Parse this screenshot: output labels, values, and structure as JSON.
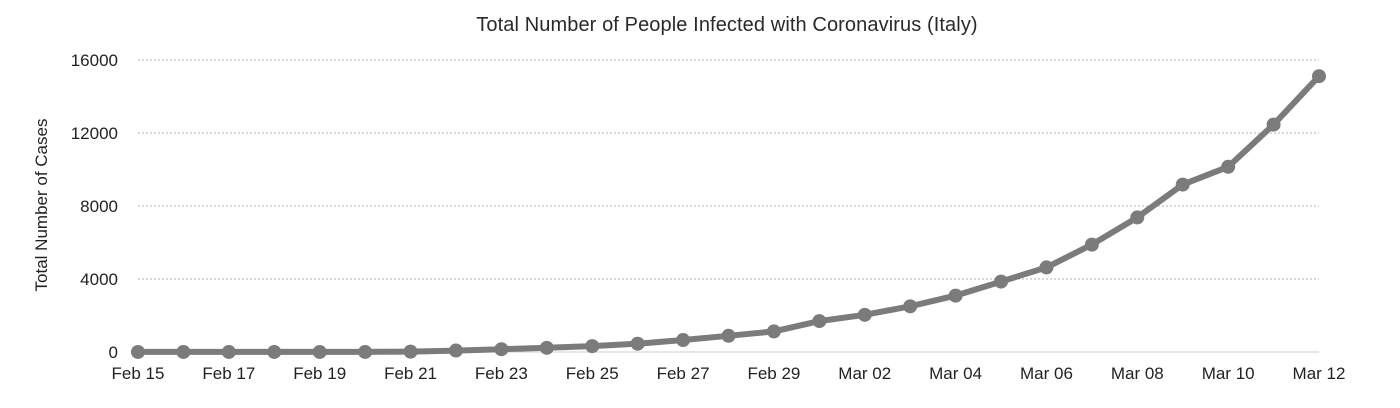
{
  "chart_data": {
    "type": "line",
    "title": "Total Number of People Infected with Coronavirus (Italy)",
    "xlabel": "",
    "ylabel": "Total Number of Cases",
    "ylim": [
      0,
      16000
    ],
    "yticks": [
      0,
      4000,
      8000,
      12000,
      16000
    ],
    "grid": true,
    "legend": "none",
    "x": [
      "Feb 15",
      "Feb 16",
      "Feb 17",
      "Feb 18",
      "Feb 19",
      "Feb 20",
      "Feb 21",
      "Feb 22",
      "Feb 23",
      "Feb 24",
      "Feb 25",
      "Feb 26",
      "Feb 27",
      "Feb 28",
      "Feb 29",
      "Mar 01",
      "Mar 02",
      "Mar 03",
      "Mar 04",
      "Mar 05",
      "Mar 06",
      "Mar 07",
      "Mar 08",
      "Mar 09",
      "Mar 10",
      "Mar 11",
      "Mar 12"
    ],
    "xtick_labels": [
      "Feb 15",
      "Feb 17",
      "Feb 19",
      "Feb 21",
      "Feb 23",
      "Feb 25",
      "Feb 27",
      "Feb 29",
      "Mar 02",
      "Mar 04",
      "Mar 06",
      "Mar 08",
      "Mar 10",
      "Mar 12"
    ],
    "series": [
      {
        "values": [
          3,
          3,
          3,
          3,
          3,
          3,
          20,
          79,
          152,
          229,
          322,
          453,
          655,
          888,
          1128,
          1694,
          2036,
          2502,
          3089,
          3858,
          4636,
          5883,
          7375,
          9172,
          10149,
          12462,
          15113
        ]
      }
    ],
    "line_color": "#7c7b7b",
    "marker_color": "#7c7b7b"
  }
}
